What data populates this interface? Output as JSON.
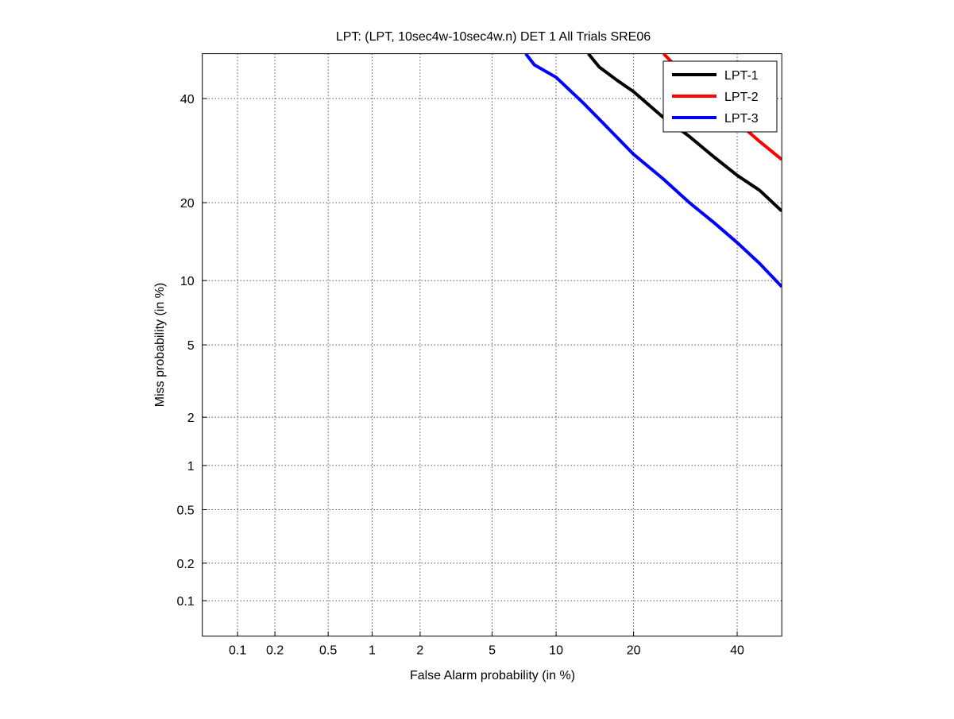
{
  "chart_data": {
    "type": "line",
    "scale": "normal-deviate (DET)",
    "title": "LPT: (LPT, 10sec4w-10sec4w.n) DET 1 All Trials SRE06",
    "xlabel": "False Alarm probability (in %)",
    "ylabel": "Miss probability (in %)",
    "xlim": [
      0.05,
      50
    ],
    "ylim": [
      0.05,
      50
    ],
    "xticks": [
      0.1,
      0.2,
      0.5,
      1,
      2,
      5,
      10,
      20,
      40
    ],
    "xtick_labels": [
      "0.1",
      "0.2",
      "0.5",
      "1",
      "2",
      "5",
      "10",
      "20",
      "40"
    ],
    "yticks": [
      0.1,
      0.2,
      0.5,
      1,
      2,
      5,
      10,
      20,
      40
    ],
    "ytick_labels": [
      "0.1",
      "0.2",
      "0.5",
      "1",
      "2",
      "5",
      "10",
      "20",
      "40"
    ],
    "grid": true,
    "legend_position": "top-right",
    "series": [
      {
        "name": "LPT-1",
        "color": "#000000",
        "x": [
          13.6,
          15,
          17.5,
          20,
          25,
          30,
          35,
          40,
          45,
          50
        ],
        "y": [
          50,
          47,
          44,
          41.5,
          36,
          32,
          28,
          24.6,
          22,
          18.7
        ]
      },
      {
        "name": "LPT-2",
        "color": "#ff0000",
        "x": [
          25.1,
          30,
          35,
          40,
          45,
          50
        ],
        "y": [
          50,
          44,
          39,
          35,
          31,
          27.5
        ]
      },
      {
        "name": "LPT-3",
        "color": "#0000ff",
        "x": [
          7.3,
          8,
          10,
          13,
          16,
          20,
          25,
          30,
          35,
          40,
          45,
          50
        ],
        "y": [
          50,
          47.5,
          44.7,
          39,
          34,
          28.5,
          24,
          20,
          17,
          14.3,
          11.8,
          9.4
        ]
      }
    ]
  }
}
